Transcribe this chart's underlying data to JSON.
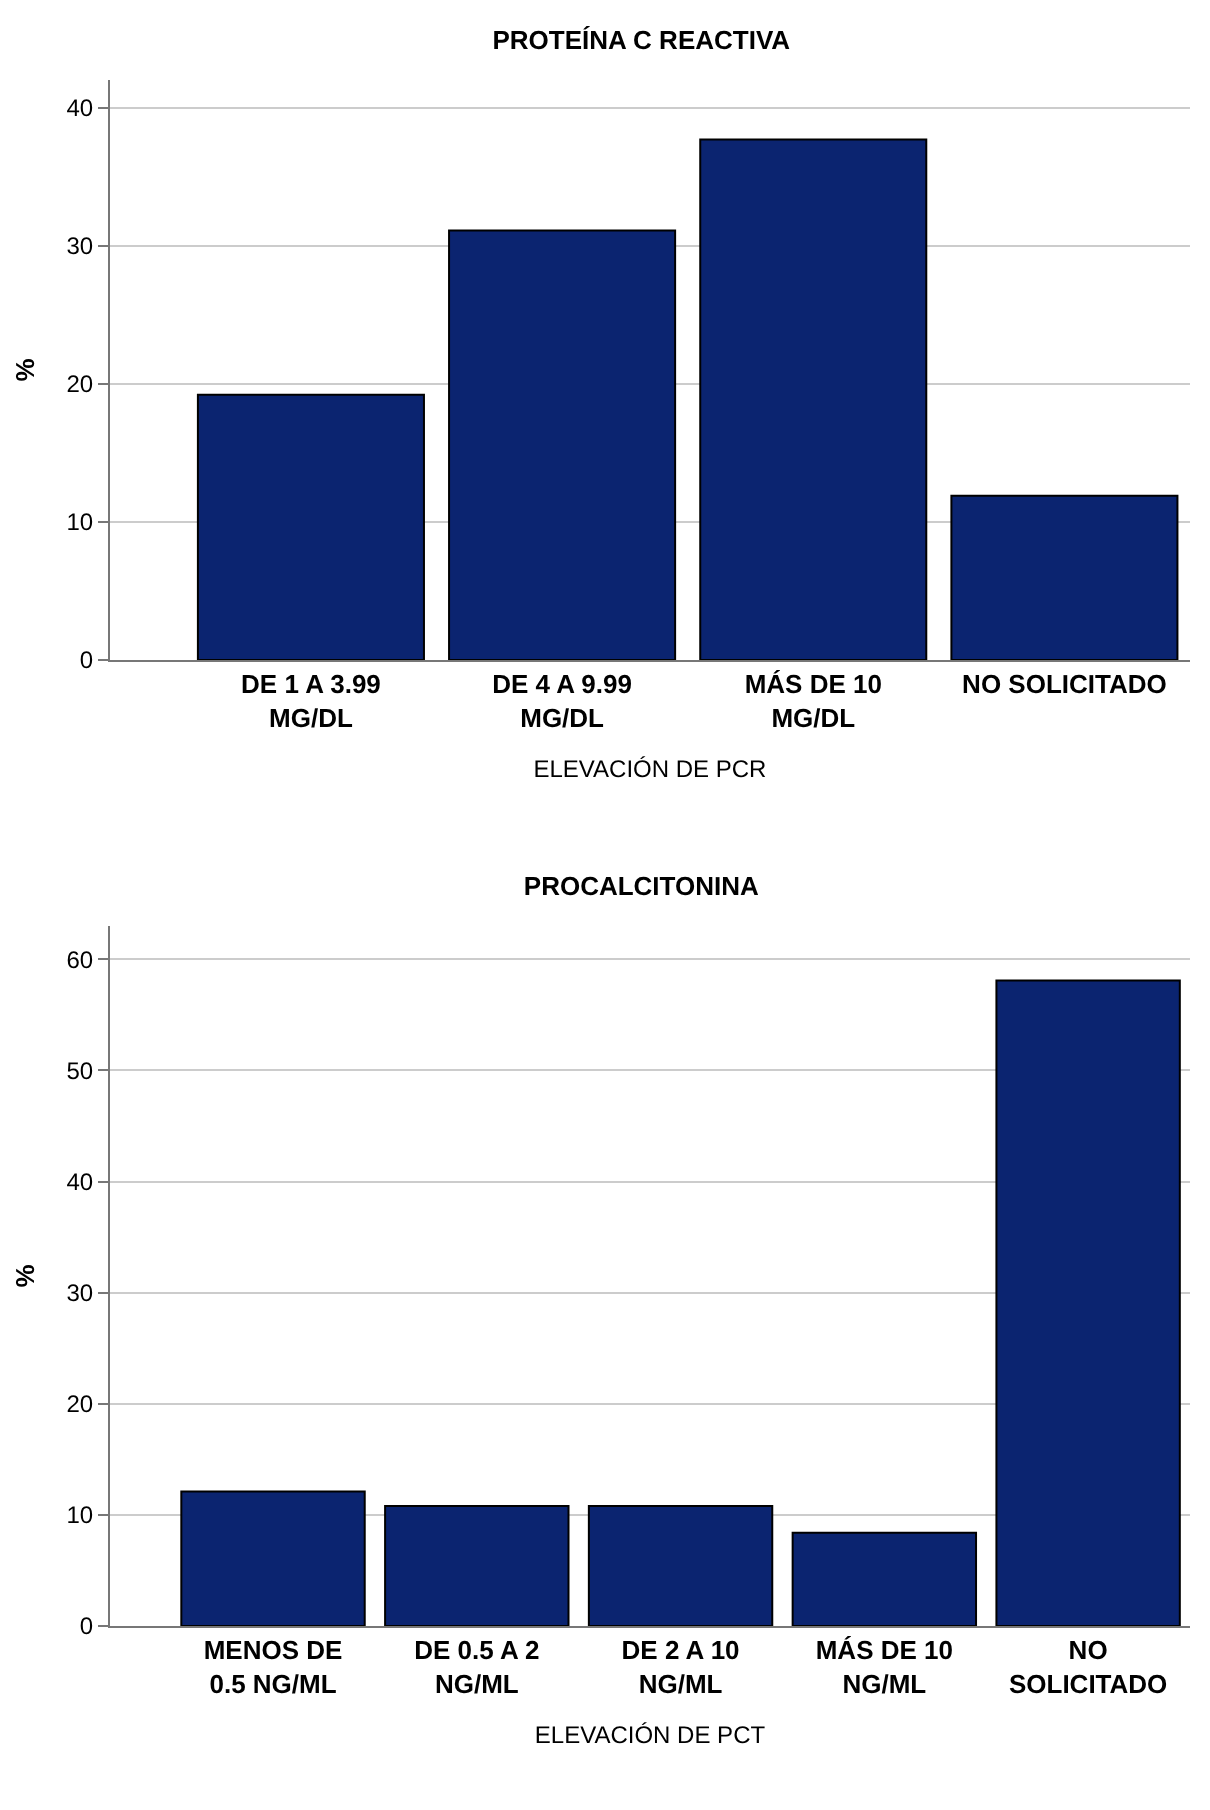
{
  "chart_data": [
    {
      "type": "bar",
      "title": "PROTEÍNA C REACTIVA",
      "xlabel": "ELEVACIÓN DE PCR",
      "ylabel": "%",
      "categories": [
        "DE 1 A 3.99\nMG/DL",
        "DE 4 A 9.99\nMG/DL",
        "MÁS DE 10\nMG/DL",
        "NO SOLICITADO"
      ],
      "values": [
        19.2,
        31.1,
        37.7,
        11.9
      ],
      "color": "#0b2470",
      "ylim": [
        0,
        42
      ],
      "yticks": [
        0,
        10,
        20,
        30,
        40
      ],
      "grid": "y"
    },
    {
      "type": "bar",
      "title": "PROCALCITONINA",
      "xlabel": "ELEVACIÓN DE PCT",
      "ylabel": "%",
      "categories": [
        "MENOS DE\n0.5 NG/ML",
        "DE 0.5 A 2\nNG/ML",
        "DE 2 A 10\nNG/ML",
        "MÁS DE 10\nNG/ML",
        "NO\nSOLICITADO"
      ],
      "values": [
        12.1,
        10.8,
        10.8,
        8.4,
        58.1
      ],
      "color": "#0b2470",
      "ylim": [
        0,
        63
      ],
      "yticks": [
        0,
        10,
        20,
        30,
        40,
        50,
        60
      ],
      "grid": "y"
    }
  ]
}
